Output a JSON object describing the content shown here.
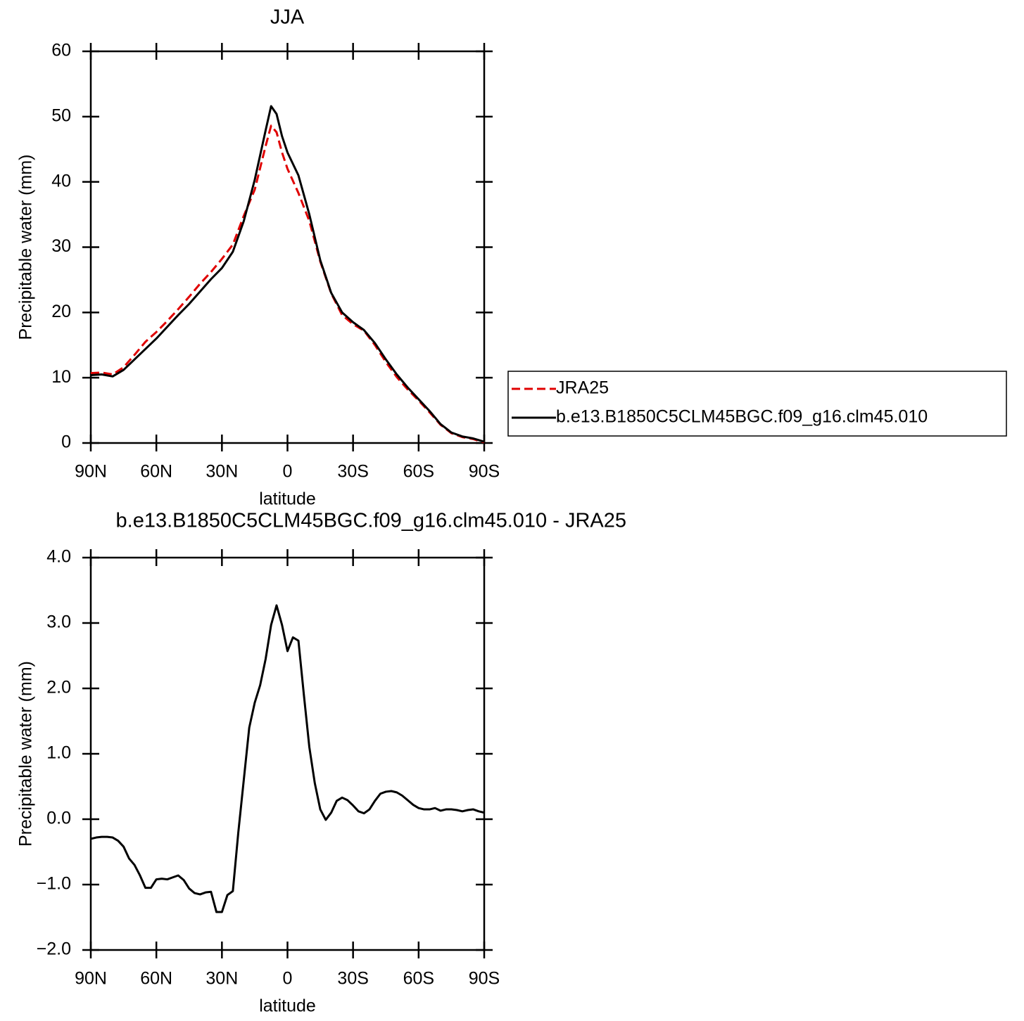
{
  "chart_data": [
    {
      "type": "line",
      "title": "JJA",
      "x_label": "latitude",
      "y_label": "Precipitable water (mm)",
      "x": [
        90,
        85,
        80,
        75,
        70,
        65,
        60,
        55,
        50,
        45,
        40,
        35,
        30,
        25,
        20,
        15,
        10,
        7.5,
        5,
        2.5,
        0,
        -5,
        -10,
        -15,
        -20,
        -25,
        -30,
        -35,
        -40,
        -45,
        -50,
        -55,
        -60,
        -65,
        -70,
        -75,
        -80,
        -85,
        -90
      ],
      "series": [
        {
          "name": "JRA25",
          "color": "#e00000",
          "dash": true,
          "values": [
            10.7,
            10.8,
            10.5,
            11.6,
            13.5,
            15.5,
            17.0,
            18.7,
            20.5,
            22.4,
            24.4,
            26.2,
            28.2,
            30.4,
            34.8,
            38.8,
            45.5,
            48.6,
            47.6,
            44.5,
            42.0,
            38.3,
            34.0,
            27.8,
            22.9,
            19.6,
            18.2,
            17.2,
            15.0,
            12.4,
            10.1,
            8.2,
            6.5,
            4.7,
            2.8,
            1.5,
            0.9,
            0.6,
            0.1
          ]
        },
        {
          "name": "b.e13.B1850C5CLM45BGC.f09_g16.clm45.010",
          "color": "#000000",
          "dash": false,
          "values": [
            10.4,
            10.5,
            10.2,
            11.2,
            12.8,
            14.4,
            16.0,
            17.8,
            19.6,
            21.3,
            23.2,
            25.1,
            26.8,
            29.3,
            34.0,
            40.3,
            47.9,
            51.6,
            50.4,
            47.0,
            44.5,
            41.0,
            35.0,
            28.0,
            23.0,
            20.0,
            18.5,
            17.3,
            15.3,
            12.8,
            10.5,
            8.5,
            6.7,
            4.9,
            2.9,
            1.6,
            1.0,
            0.7,
            0.2
          ]
        }
      ],
      "xlim": [
        90,
        -90
      ],
      "xticks": [
        {
          "value": 90,
          "label": "90N"
        },
        {
          "value": 60,
          "label": "60N"
        },
        {
          "value": 30,
          "label": "30N"
        },
        0,
        {
          "value": -30,
          "label": "30S"
        },
        {
          "value": -60,
          "label": "60S"
        },
        {
          "value": -90,
          "label": "90S"
        }
      ],
      "ylim": [
        0,
        60
      ],
      "yticks": [
        0,
        10,
        20,
        30,
        40,
        50,
        60
      ],
      "legend": "right"
    },
    {
      "type": "line",
      "title": "b.e13.B1850C5CLM45BGC.f09_g16.clm45.010 - JRA25",
      "x_label": "latitude",
      "y_label": "Precipitable water (mm)",
      "x": [
        90,
        87.5,
        85,
        82.5,
        80,
        77.5,
        75,
        72.5,
        70,
        67.5,
        65,
        62.5,
        60,
        57.5,
        55,
        52.5,
        50,
        47.5,
        45,
        42.5,
        40,
        37.5,
        35,
        32.5,
        30,
        27.5,
        25,
        22.5,
        20,
        17.5,
        15,
        12.5,
        10,
        7.5,
        5,
        2.5,
        0,
        -2.5,
        -5,
        -7.5,
        -10,
        -12.5,
        -15,
        -17.5,
        -20,
        -22.5,
        -25,
        -27.5,
        -30,
        -32.5,
        -35,
        -37.5,
        -40,
        -42.5,
        -45,
        -47.5,
        -50,
        -52.5,
        -55,
        -57.5,
        -60,
        -62.5,
        -65,
        -67.5,
        -70,
        -72.5,
        -75,
        -77.5,
        -80,
        -82.5,
        -85,
        -87.5,
        -90
      ],
      "values": [
        -0.3,
        -0.28,
        -0.27,
        -0.27,
        -0.28,
        -0.33,
        -0.42,
        -0.6,
        -0.7,
        -0.86,
        -1.05,
        -1.05,
        -0.92,
        -0.91,
        -0.92,
        -0.89,
        -0.86,
        -0.93,
        -1.06,
        -1.13,
        -1.15,
        -1.12,
        -1.11,
        -1.42,
        -1.42,
        -1.16,
        -1.1,
        -0.2,
        0.6,
        1.4,
        1.78,
        2.05,
        2.45,
        2.97,
        3.27,
        2.97,
        2.57,
        2.78,
        2.73,
        1.9,
        1.1,
        0.55,
        0.15,
        -0.01,
        0.1,
        0.28,
        0.33,
        0.29,
        0.21,
        0.12,
        0.09,
        0.15,
        0.28,
        0.39,
        0.42,
        0.43,
        0.41,
        0.36,
        0.29,
        0.22,
        0.17,
        0.15,
        0.15,
        0.17,
        0.13,
        0.15,
        0.15,
        0.14,
        0.12,
        0.14,
        0.15,
        0.12,
        0.1
      ],
      "color": "#000000",
      "xlim": [
        90,
        -90
      ],
      "xticks": [
        {
          "value": 90,
          "label": "90N"
        },
        {
          "value": 60,
          "label": "60N"
        },
        {
          "value": 30,
          "label": "30N"
        },
        0,
        {
          "value": -30,
          "label": "30S"
        },
        {
          "value": -60,
          "label": "60S"
        },
        {
          "value": -90,
          "label": "90S"
        }
      ],
      "ylim": [
        -2,
        4
      ],
      "yticks": [
        {
          "value": -2,
          "label": "−2.0"
        },
        {
          "value": -1,
          "label": "−1.0"
        },
        {
          "value": 0,
          "label": "0.0"
        },
        {
          "value": 1,
          "label": "1.0"
        },
        {
          "value": 2,
          "label": "2.0"
        },
        {
          "value": 3,
          "label": "3.0"
        },
        {
          "value": 4,
          "label": "4.0"
        }
      ]
    }
  ]
}
